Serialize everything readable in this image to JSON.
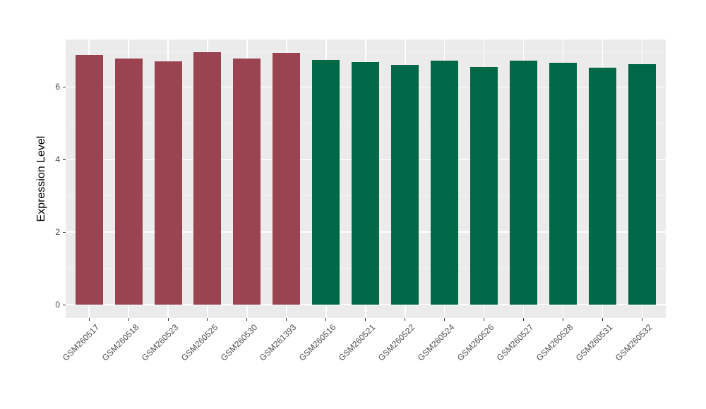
{
  "chart_data": {
    "type": "bar",
    "title": "",
    "xlabel": "",
    "ylabel": "Expression Level",
    "yticks": [
      0,
      2,
      4,
      6
    ],
    "ytick_labels": [
      "0",
      "2",
      "4",
      "6"
    ],
    "minor_yticks": [
      1,
      3,
      5,
      7
    ],
    "ylim": [
      -0.36,
      7.31
    ],
    "legend": "none",
    "grid": "on",
    "panel_bg": "#ebebeb",
    "grid_major_color": "#ffffff",
    "grid_minor_color": "#f4f4f4",
    "group_colors": {
      "group1": "#9a4351",
      "group2": "#016847"
    },
    "categories": [
      "GSM260517",
      "GSM260518",
      "GSM260523",
      "GSM260525",
      "GSM260530",
      "GSM261393",
      "GSM260516",
      "GSM260521",
      "GSM260522",
      "GSM260524",
      "GSM260526",
      "GSM260527",
      "GSM260528",
      "GSM260531",
      "GSM260532"
    ],
    "bars": [
      {
        "label": "GSM260517",
        "value": 6.88,
        "group": "group1"
      },
      {
        "label": "GSM260518",
        "value": 6.79,
        "group": "group1"
      },
      {
        "label": "GSM260523",
        "value": 6.7,
        "group": "group1"
      },
      {
        "label": "GSM260525",
        "value": 6.97,
        "group": "group1"
      },
      {
        "label": "GSM260530",
        "value": 6.79,
        "group": "group1"
      },
      {
        "label": "GSM261393",
        "value": 6.94,
        "group": "group1"
      },
      {
        "label": "GSM260516",
        "value": 6.75,
        "group": "group2"
      },
      {
        "label": "GSM260521",
        "value": 6.68,
        "group": "group2"
      },
      {
        "label": "GSM260522",
        "value": 6.62,
        "group": "group2"
      },
      {
        "label": "GSM260524",
        "value": 6.73,
        "group": "group2"
      },
      {
        "label": "GSM260526",
        "value": 6.56,
        "group": "group2"
      },
      {
        "label": "GSM260527",
        "value": 6.72,
        "group": "group2"
      },
      {
        "label": "GSM260528",
        "value": 6.66,
        "group": "group2"
      },
      {
        "label": "GSM260531",
        "value": 6.53,
        "group": "group2"
      },
      {
        "label": "GSM260532",
        "value": 6.64,
        "group": "group2"
      }
    ]
  }
}
